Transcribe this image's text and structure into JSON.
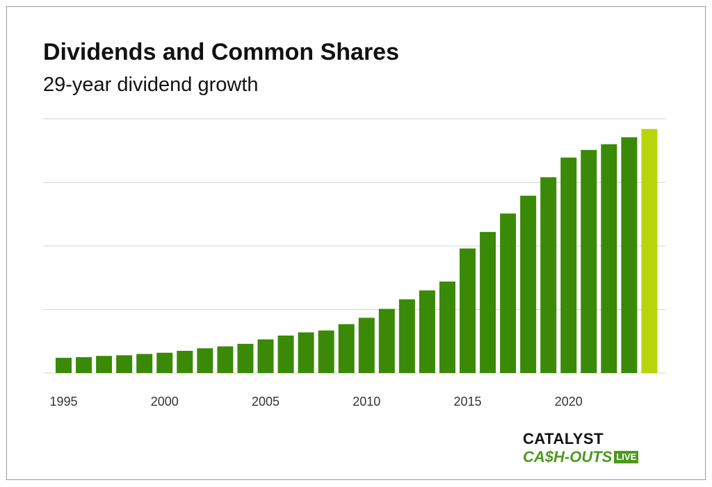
{
  "header": {
    "title": "Dividends and Common Shares",
    "subtitle": "29-year dividend growth"
  },
  "logo": {
    "line1": "CATALYST",
    "line2": "CA$H-OUTS",
    "badge": "LIVE"
  },
  "colors": {
    "bar": "#3a8a07",
    "highlight_bar": "#b8d40a",
    "grid": "#d4d4d4"
  },
  "chart_data": {
    "type": "bar",
    "title": "Dividends and Common Shares",
    "subtitle": "29-year dividend growth",
    "xlabel": "",
    "ylabel": "",
    "categories": [
      1995,
      1996,
      1997,
      1998,
      1999,
      2000,
      2001,
      2002,
      2003,
      2004,
      2005,
      2006,
      2007,
      2008,
      2009,
      2010,
      2011,
      2012,
      2013,
      2014,
      2015,
      2016,
      2017,
      2018,
      2019,
      2020,
      2021,
      2022,
      2023,
      2024
    ],
    "values": [
      0.24,
      0.25,
      0.27,
      0.28,
      0.3,
      0.32,
      0.35,
      0.39,
      0.42,
      0.46,
      0.53,
      0.59,
      0.64,
      0.67,
      0.77,
      0.87,
      1.01,
      1.16,
      1.3,
      1.44,
      1.96,
      2.22,
      2.51,
      2.79,
      3.08,
      3.39,
      3.51,
      3.6,
      3.71,
      3.84
    ],
    "highlight_index": 29,
    "x_ticks": [
      "1995",
      "2000",
      "2005",
      "2010",
      "2015",
      "2020"
    ],
    "ylim": [
      0,
      4
    ],
    "grid": true,
    "y_tick_labels": false,
    "legend": "none"
  }
}
